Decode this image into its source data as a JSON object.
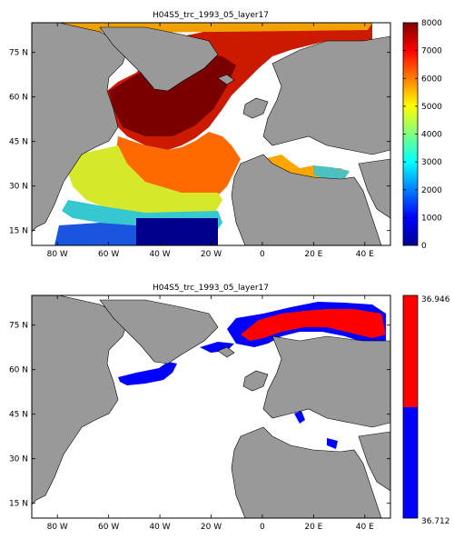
{
  "chart_data": [
    {
      "type": "heatmap",
      "title": "H04S5_trc_1993_05_layer17",
      "x_tick_labels": [
        "80 W",
        "60 W",
        "40 W",
        "20 W",
        "0",
        "20 E",
        "40 E"
      ],
      "x_ticks": [
        -80,
        -60,
        -40,
        -20,
        0,
        20,
        40
      ],
      "y_tick_labels": [
        "15 N",
        "30 N",
        "45 N",
        "60 N",
        "75 N"
      ],
      "y_ticks": [
        15,
        30,
        45,
        60,
        75
      ],
      "xlim": [
        -90,
        50
      ],
      "ylim": [
        10,
        85
      ],
      "colorbar": {
        "colormap": "jet",
        "range": [
          0,
          8000
        ],
        "tick_labels": [
          "0",
          "1000",
          "2000",
          "3000",
          "4000",
          "5000",
          "6000",
          "7000",
          "8000"
        ],
        "ticks": [
          0,
          1000,
          2000,
          3000,
          4000,
          5000,
          6000,
          7000,
          8000
        ]
      }
    },
    {
      "type": "heatmap",
      "title": "H04S5_trc_1993_05_layer17",
      "x_tick_labels": [
        "80 W",
        "60 W",
        "40 W",
        "20 W",
        "0",
        "20 E",
        "40 E"
      ],
      "x_ticks": [
        -80,
        -60,
        -40,
        -20,
        0,
        20,
        40
      ],
      "y_tick_labels": [
        "15 N",
        "30 N",
        "45 N",
        "60 N",
        "75 N"
      ],
      "y_ticks": [
        15,
        30,
        45,
        60,
        75
      ],
      "xlim": [
        -90,
        50
      ],
      "ylim": [
        10,
        85
      ],
      "colorbar": {
        "colormap": "two-color",
        "colors": [
          "#0000ff",
          "#ff0000"
        ],
        "range": [
          36.712,
          36.946
        ],
        "tick_labels": [
          "36.712",
          "36.946"
        ],
        "ticks": [
          36.712,
          36.946
        ]
      }
    }
  ]
}
